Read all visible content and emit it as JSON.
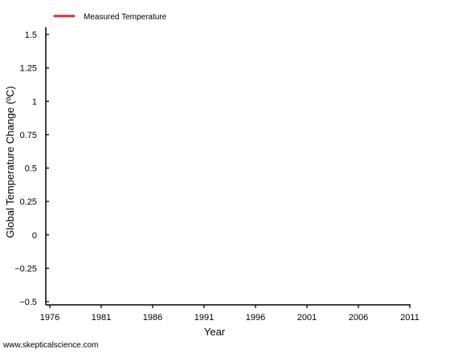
{
  "chart_data": {
    "type": "line",
    "xlabel": "Year",
    "ylabel": "Global Temperature Change (ºC)",
    "xlim": [
      1976,
      2011
    ],
    "ylim": [
      -0.5,
      1.5
    ],
    "x_ticks": [
      1976,
      1981,
      1986,
      1991,
      1996,
      2001,
      2006,
      2011
    ],
    "y_ticks": [
      1.5,
      1.25,
      1,
      0.75,
      0.5,
      0.25,
      0,
      -0.25,
      -0.5
    ],
    "y_tick_labels": [
      "1.5",
      "1.25",
      "1",
      "0.75",
      "0.5",
      "0.25",
      "0",
      "−0.25",
      "−0.5"
    ],
    "series": [
      {
        "name": "Measured Temperature",
        "color": "#cc3333",
        "x": [],
        "y": []
      }
    ],
    "legend": "top-left",
    "grid": false
  },
  "credit": "www.skepticalscience.com"
}
